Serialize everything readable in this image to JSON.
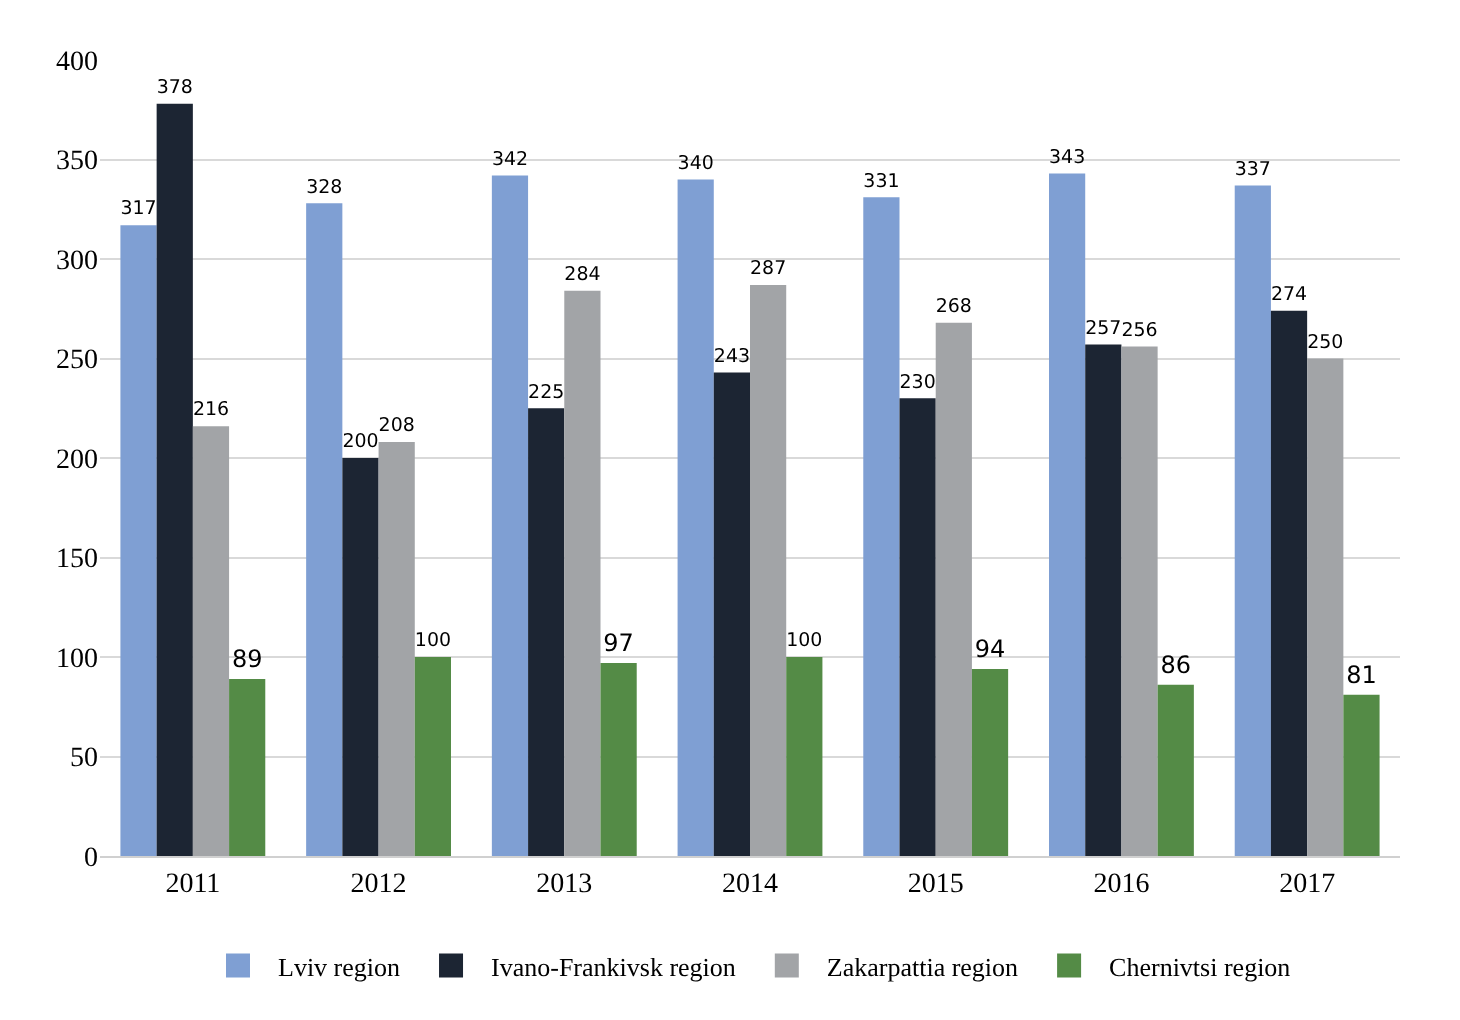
{
  "chart_data": {
    "type": "bar",
    "categories": [
      "2011",
      "2012",
      "2013",
      "2014",
      "2015",
      "2016",
      "2017"
    ],
    "series": [
      {
        "name": "Lviv region",
        "color": "#7f9fd3",
        "values": [
          317,
          328,
          342,
          340,
          331,
          343,
          337
        ]
      },
      {
        "name": "Ivano-Frankivsk region",
        "color": "#1c2533",
        "values": [
          378,
          200,
          225,
          243,
          230,
          257,
          274
        ]
      },
      {
        "name": "Zakarpattia region",
        "color": "#a2a4a7",
        "values": [
          216,
          208,
          284,
          287,
          268,
          256,
          250
        ]
      },
      {
        "name": "Chernivtsi region",
        "color": "#548b46",
        "values": [
          89,
          100,
          97,
          100,
          94,
          86,
          81
        ]
      }
    ],
    "ylim": [
      0,
      400
    ],
    "yticks": [
      0,
      50,
      100,
      150,
      200,
      250,
      300,
      350,
      400
    ],
    "grid": "y",
    "legend": "bottom",
    "data_labels": true
  }
}
